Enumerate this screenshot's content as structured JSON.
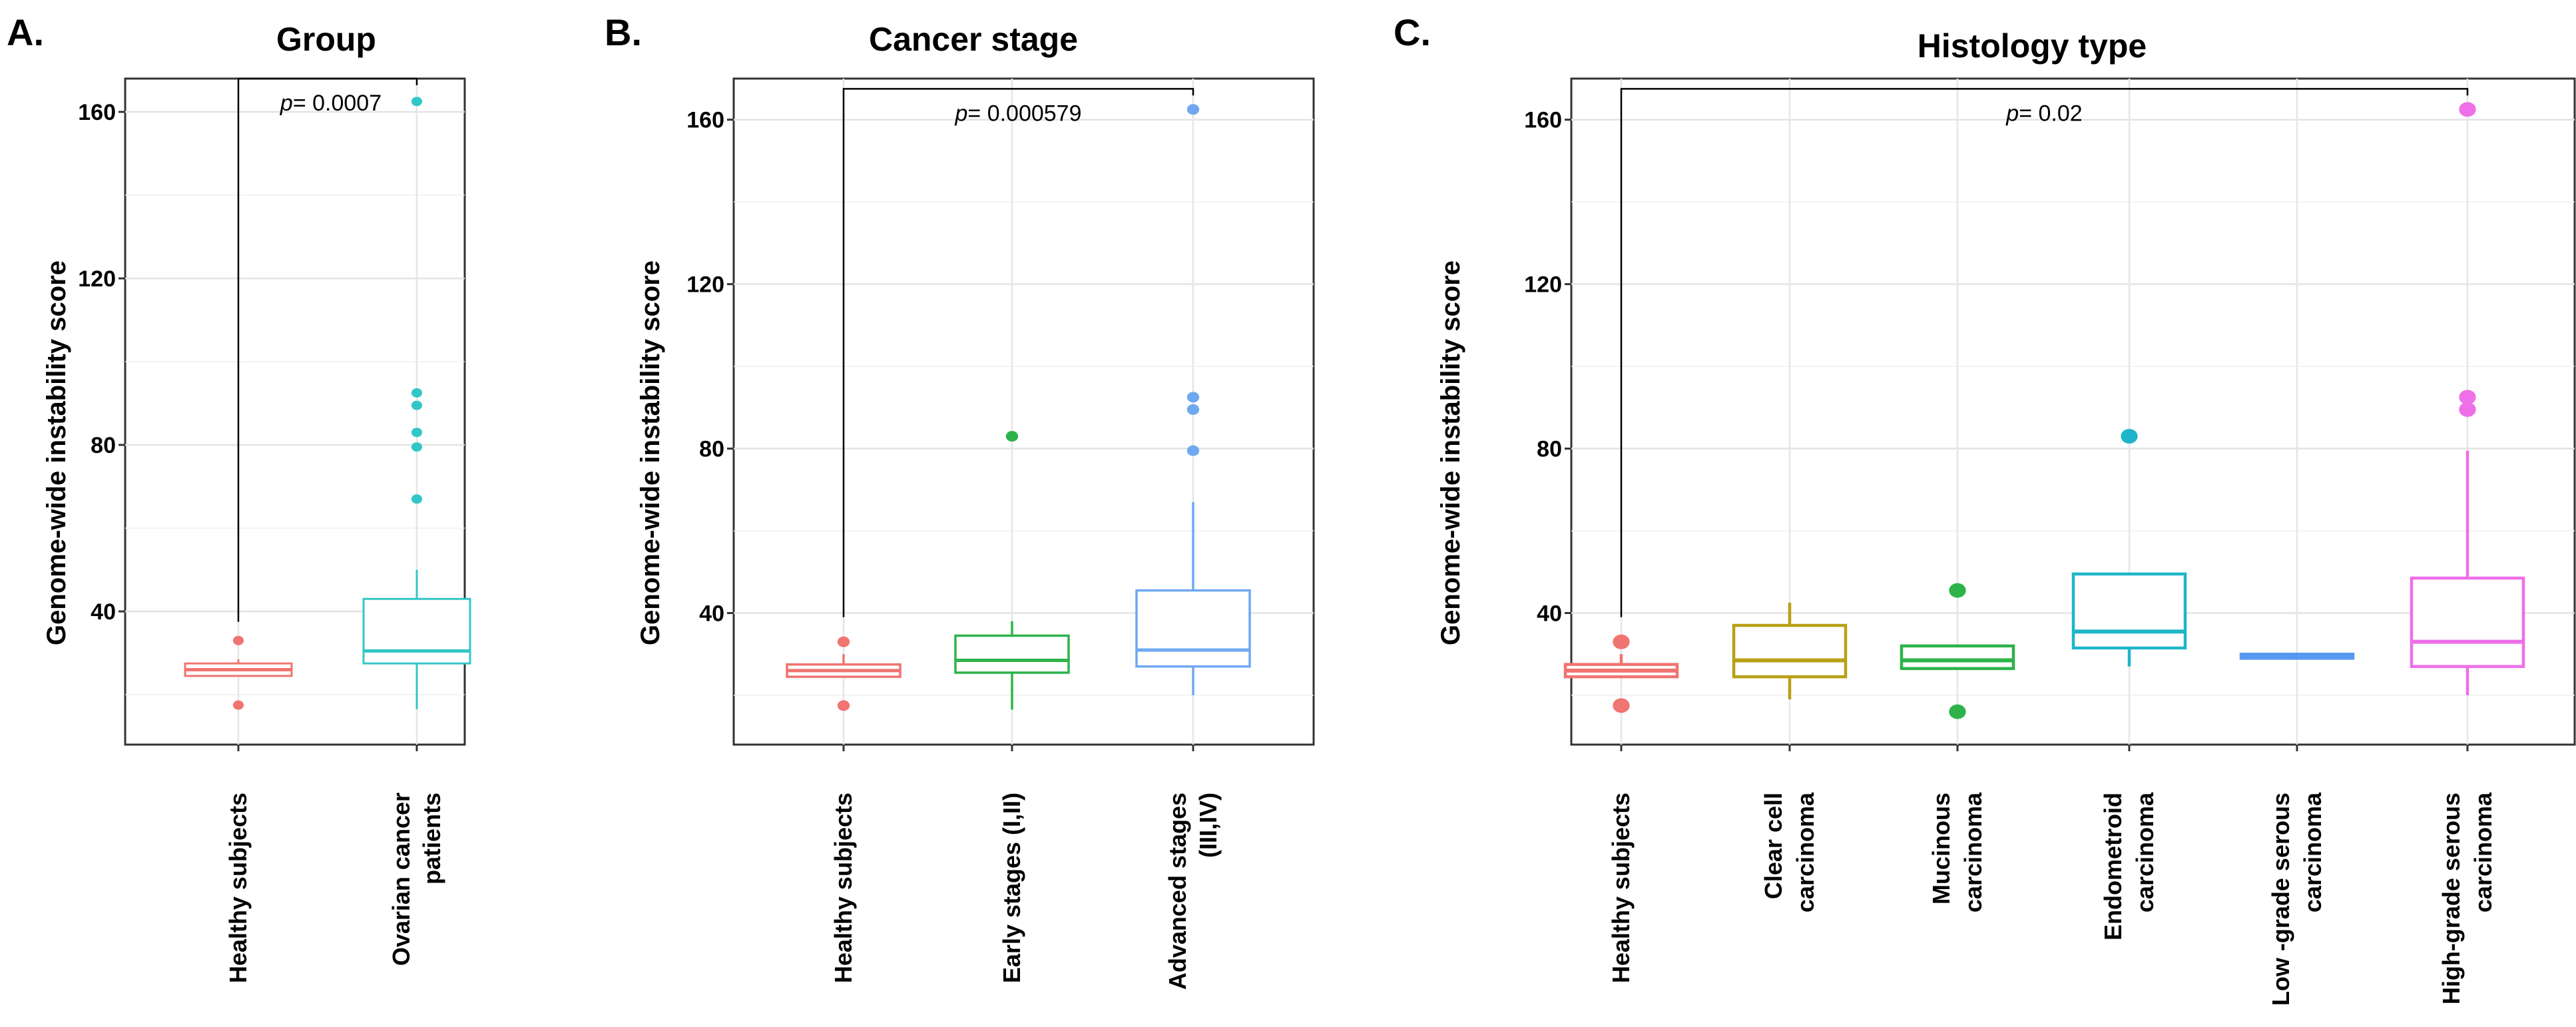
{
  "figure": {
    "ylabel": "Genome-wide instability score"
  },
  "chart_data": [
    {
      "type": "box",
      "letter": "A.",
      "title": "Group",
      "ylabel": "Genome-wide instability score",
      "ylim": [
        8,
        168
      ],
      "yticks": [
        40,
        80,
        120,
        160
      ],
      "pvalue": {
        "prefix": "p",
        "text": "= 0.0007",
        "from": 0,
        "to": 1,
        "bracket_y": 168
      },
      "categories": [
        {
          "label": [
            "Healthy subjects"
          ],
          "color": "#F07470",
          "q1": 24.5,
          "median": 26,
          "q3": 27.5,
          "whisker_low": 24.5,
          "whisker_high": 28.5,
          "outliers": [
            33,
            17.5
          ]
        },
        {
          "label": [
            "Ovarian cancer",
            "patients"
          ],
          "color": "#33C6C6",
          "q1": 27.5,
          "median": 30.5,
          "q3": 43,
          "whisker_low": 16.5,
          "whisker_high": 50,
          "outliers": [
            162.5,
            92.5,
            89.5,
            83,
            79.5,
            67
          ]
        }
      ]
    },
    {
      "type": "box",
      "letter": "B.",
      "title": "Cancer stage",
      "ylabel": "Genome-wide instability score",
      "ylim": [
        8,
        170
      ],
      "yticks": [
        40,
        80,
        120,
        160
      ],
      "pvalue": {
        "prefix": "p",
        "text": "= 0.000579",
        "from": 0,
        "to": 2,
        "bracket_y": 167.5
      },
      "categories": [
        {
          "label": [
            "Healthy subjects"
          ],
          "color": "#F07470",
          "q1": 24.5,
          "median": 26,
          "q3": 27.5,
          "whisker_low": 24.5,
          "whisker_high": 30,
          "outliers": [
            33,
            17.5
          ]
        },
        {
          "label": [
            "Early stages (I,II)"
          ],
          "color": "#2DB34A",
          "q1": 25.5,
          "median": 28.5,
          "q3": 34.5,
          "whisker_low": 16.5,
          "whisker_high": 38,
          "outliers": [
            83
          ]
        },
        {
          "label": [
            "Advanced stages",
            "(III,IV)"
          ],
          "color": "#6FA8F0",
          "q1": 27,
          "median": 31,
          "q3": 45.5,
          "whisker_low": 20,
          "whisker_high": 67,
          "outliers": [
            162.5,
            92.5,
            89.5,
            79.5
          ]
        }
      ]
    },
    {
      "type": "box",
      "letter": "C.",
      "title": "Histology type",
      "ylabel": "Genome-wide instability score",
      "ylim": [
        8,
        170
      ],
      "yticks": [
        40,
        80,
        120,
        160
      ],
      "pvalue": {
        "prefix": "p",
        "text": "= 0.02",
        "from": 0,
        "to": 5,
        "bracket_y": 167.5
      },
      "categories": [
        {
          "label": [
            "Healthy subjects"
          ],
          "color": "#F07470",
          "q1": 24.5,
          "median": 26,
          "q3": 27.5,
          "whisker_low": 24.5,
          "whisker_high": 30,
          "outliers": [
            33,
            17.5
          ]
        },
        {
          "label": [
            "Clear cell",
            "carcinoma"
          ],
          "color": "#B8A015",
          "q1": 24.5,
          "median": 28.5,
          "q3": 37,
          "whisker_low": 19,
          "whisker_high": 42.5,
          "outliers": []
        },
        {
          "label": [
            "Mucinous",
            "carcinoma"
          ],
          "color": "#2DB34A",
          "q1": 26.5,
          "median": 28.5,
          "q3": 32,
          "whisker_low": 26.5,
          "whisker_high": 32,
          "outliers": [
            45.5,
            16
          ]
        },
        {
          "label": [
            "Endometroid",
            "carcinoma"
          ],
          "color": "#1FB5C8",
          "q1": 31.5,
          "median": 35.5,
          "q3": 49.5,
          "whisker_low": 27,
          "whisker_high": 49.5,
          "outliers": [
            83
          ]
        },
        {
          "label": [
            "Low -grade serous",
            "carcinoma"
          ],
          "color": "#5599F0",
          "q1": 29,
          "median": 29.5,
          "q3": 30,
          "whisker_low": 29,
          "whisker_high": 30,
          "outliers": []
        },
        {
          "label": [
            "High-grade serous",
            "carcinoma"
          ],
          "color": "#EE6FE8",
          "q1": 27,
          "median": 33,
          "q3": 48.5,
          "whisker_low": 20,
          "whisker_high": 79.5,
          "outliers": [
            162.5,
            92.5,
            89.5
          ]
        }
      ]
    }
  ]
}
